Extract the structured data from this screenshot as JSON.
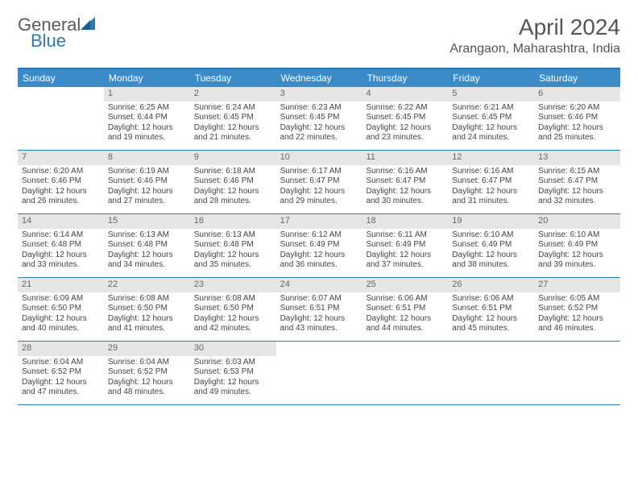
{
  "logo": {
    "text1": "General",
    "text2": "Blue"
  },
  "title": "April 2024",
  "location": "Arangaon, Maharashtra, India",
  "colors": {
    "header_bg": "#3b8bc9",
    "header_border": "#2a7ab8",
    "daynum_bg": "#e6e6e6",
    "text": "#444444",
    "logo_gray": "#5a5a5a",
    "logo_blue": "#2a7ab8"
  },
  "day_names": [
    "Sunday",
    "Monday",
    "Tuesday",
    "Wednesday",
    "Thursday",
    "Friday",
    "Saturday"
  ],
  "weeks": [
    [
      {
        "n": "",
        "sunrise": "",
        "sunset": "",
        "daylight": ""
      },
      {
        "n": "1",
        "sunrise": "Sunrise: 6:25 AM",
        "sunset": "Sunset: 6:44 PM",
        "daylight": "Daylight: 12 hours and 19 minutes."
      },
      {
        "n": "2",
        "sunrise": "Sunrise: 6:24 AM",
        "sunset": "Sunset: 6:45 PM",
        "daylight": "Daylight: 12 hours and 21 minutes."
      },
      {
        "n": "3",
        "sunrise": "Sunrise: 6:23 AM",
        "sunset": "Sunset: 6:45 PM",
        "daylight": "Daylight: 12 hours and 22 minutes."
      },
      {
        "n": "4",
        "sunrise": "Sunrise: 6:22 AM",
        "sunset": "Sunset: 6:45 PM",
        "daylight": "Daylight: 12 hours and 23 minutes."
      },
      {
        "n": "5",
        "sunrise": "Sunrise: 6:21 AM",
        "sunset": "Sunset: 6:45 PM",
        "daylight": "Daylight: 12 hours and 24 minutes."
      },
      {
        "n": "6",
        "sunrise": "Sunrise: 6:20 AM",
        "sunset": "Sunset: 6:46 PM",
        "daylight": "Daylight: 12 hours and 25 minutes."
      }
    ],
    [
      {
        "n": "7",
        "sunrise": "Sunrise: 6:20 AM",
        "sunset": "Sunset: 6:46 PM",
        "daylight": "Daylight: 12 hours and 26 minutes."
      },
      {
        "n": "8",
        "sunrise": "Sunrise: 6:19 AM",
        "sunset": "Sunset: 6:46 PM",
        "daylight": "Daylight: 12 hours and 27 minutes."
      },
      {
        "n": "9",
        "sunrise": "Sunrise: 6:18 AM",
        "sunset": "Sunset: 6:46 PM",
        "daylight": "Daylight: 12 hours and 28 minutes."
      },
      {
        "n": "10",
        "sunrise": "Sunrise: 6:17 AM",
        "sunset": "Sunset: 6:47 PM",
        "daylight": "Daylight: 12 hours and 29 minutes."
      },
      {
        "n": "11",
        "sunrise": "Sunrise: 6:16 AM",
        "sunset": "Sunset: 6:47 PM",
        "daylight": "Daylight: 12 hours and 30 minutes."
      },
      {
        "n": "12",
        "sunrise": "Sunrise: 6:16 AM",
        "sunset": "Sunset: 6:47 PM",
        "daylight": "Daylight: 12 hours and 31 minutes."
      },
      {
        "n": "13",
        "sunrise": "Sunrise: 6:15 AM",
        "sunset": "Sunset: 6:47 PM",
        "daylight": "Daylight: 12 hours and 32 minutes."
      }
    ],
    [
      {
        "n": "14",
        "sunrise": "Sunrise: 6:14 AM",
        "sunset": "Sunset: 6:48 PM",
        "daylight": "Daylight: 12 hours and 33 minutes."
      },
      {
        "n": "15",
        "sunrise": "Sunrise: 6:13 AM",
        "sunset": "Sunset: 6:48 PM",
        "daylight": "Daylight: 12 hours and 34 minutes."
      },
      {
        "n": "16",
        "sunrise": "Sunrise: 6:13 AM",
        "sunset": "Sunset: 6:48 PM",
        "daylight": "Daylight: 12 hours and 35 minutes."
      },
      {
        "n": "17",
        "sunrise": "Sunrise: 6:12 AM",
        "sunset": "Sunset: 6:49 PM",
        "daylight": "Daylight: 12 hours and 36 minutes."
      },
      {
        "n": "18",
        "sunrise": "Sunrise: 6:11 AM",
        "sunset": "Sunset: 6:49 PM",
        "daylight": "Daylight: 12 hours and 37 minutes."
      },
      {
        "n": "19",
        "sunrise": "Sunrise: 6:10 AM",
        "sunset": "Sunset: 6:49 PM",
        "daylight": "Daylight: 12 hours and 38 minutes."
      },
      {
        "n": "20",
        "sunrise": "Sunrise: 6:10 AM",
        "sunset": "Sunset: 6:49 PM",
        "daylight": "Daylight: 12 hours and 39 minutes."
      }
    ],
    [
      {
        "n": "21",
        "sunrise": "Sunrise: 6:09 AM",
        "sunset": "Sunset: 6:50 PM",
        "daylight": "Daylight: 12 hours and 40 minutes."
      },
      {
        "n": "22",
        "sunrise": "Sunrise: 6:08 AM",
        "sunset": "Sunset: 6:50 PM",
        "daylight": "Daylight: 12 hours and 41 minutes."
      },
      {
        "n": "23",
        "sunrise": "Sunrise: 6:08 AM",
        "sunset": "Sunset: 6:50 PM",
        "daylight": "Daylight: 12 hours and 42 minutes."
      },
      {
        "n": "24",
        "sunrise": "Sunrise: 6:07 AM",
        "sunset": "Sunset: 6:51 PM",
        "daylight": "Daylight: 12 hours and 43 minutes."
      },
      {
        "n": "25",
        "sunrise": "Sunrise: 6:06 AM",
        "sunset": "Sunset: 6:51 PM",
        "daylight": "Daylight: 12 hours and 44 minutes."
      },
      {
        "n": "26",
        "sunrise": "Sunrise: 6:06 AM",
        "sunset": "Sunset: 6:51 PM",
        "daylight": "Daylight: 12 hours and 45 minutes."
      },
      {
        "n": "27",
        "sunrise": "Sunrise: 6:05 AM",
        "sunset": "Sunset: 6:52 PM",
        "daylight": "Daylight: 12 hours and 46 minutes."
      }
    ],
    [
      {
        "n": "28",
        "sunrise": "Sunrise: 6:04 AM",
        "sunset": "Sunset: 6:52 PM",
        "daylight": "Daylight: 12 hours and 47 minutes."
      },
      {
        "n": "29",
        "sunrise": "Sunrise: 6:04 AM",
        "sunset": "Sunset: 6:52 PM",
        "daylight": "Daylight: 12 hours and 48 minutes."
      },
      {
        "n": "30",
        "sunrise": "Sunrise: 6:03 AM",
        "sunset": "Sunset: 6:53 PM",
        "daylight": "Daylight: 12 hours and 49 minutes."
      },
      {
        "n": "",
        "sunrise": "",
        "sunset": "",
        "daylight": ""
      },
      {
        "n": "",
        "sunrise": "",
        "sunset": "",
        "daylight": ""
      },
      {
        "n": "",
        "sunrise": "",
        "sunset": "",
        "daylight": ""
      },
      {
        "n": "",
        "sunrise": "",
        "sunset": "",
        "daylight": ""
      }
    ]
  ]
}
